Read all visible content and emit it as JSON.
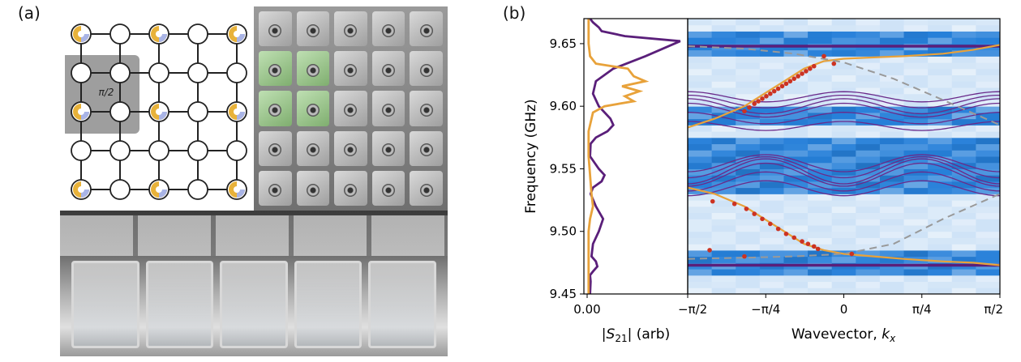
{
  "panel_a": {
    "label": "(a)",
    "unit_cell_label": "π/2",
    "lattice_note": "5x5 resonator lattice"
  },
  "panel_b": {
    "label": "(b)"
  },
  "chart_data": [
    {
      "type": "line",
      "title": "",
      "xlabel": "|S21| (arb)",
      "ylabel": "Frequency (GHz)",
      "xticks": [
        "0.00"
      ],
      "yticks": [
        "9.45",
        "9.50",
        "9.55",
        "9.60",
        "9.65"
      ],
      "ylim": [
        9.45,
        9.67
      ],
      "series": [
        {
          "name": "purple",
          "color": "#5a1f7a",
          "x": [
            0.01,
            0.012,
            0.01,
            0.02,
            0.035,
            0.03,
            0.015,
            0.02,
            0.04,
            0.055,
            0.03,
            0.012,
            0.02,
            0.05,
            0.06,
            0.04,
            0.01,
            0.012,
            0.03,
            0.07,
            0.09,
            0.08,
            0.04,
            0.02,
            0.03,
            0.09,
            0.2,
            0.32,
            0.13,
            0.05,
            0.04,
            0.02,
            0.01
          ],
          "y": [
            9.45,
            9.46,
            9.465,
            9.468,
            9.472,
            9.476,
            9.48,
            9.49,
            9.5,
            9.51,
            9.52,
            9.53,
            9.535,
            9.54,
            9.545,
            9.55,
            9.56,
            9.57,
            9.575,
            9.58,
            9.585,
            9.59,
            9.6,
            9.61,
            9.62,
            9.63,
            9.64,
            9.652,
            9.656,
            9.66,
            9.663,
            9.667,
            9.67
          ]
        },
        {
          "name": "orange",
          "color": "#e8a23a",
          "x": [
            0.005,
            0.005,
            0.005,
            0.01,
            0.02,
            0.015,
            0.005,
            0.005,
            0.02,
            0.06,
            0.16,
            0.13,
            0.18,
            0.12,
            0.2,
            0.16,
            0.14,
            0.03,
            0.01,
            0.005,
            0.005
          ],
          "y": [
            9.45,
            9.48,
            9.5,
            9.51,
            9.52,
            9.53,
            9.56,
            9.58,
            9.595,
            9.6,
            9.604,
            9.608,
            9.612,
            9.616,
            9.62,
            9.624,
            9.63,
            9.634,
            9.64,
            9.65,
            9.67
          ]
        }
      ]
    },
    {
      "type": "line",
      "title": "",
      "xlabel": "Wavevector, kx",
      "ylabel": "",
      "xticks": [
        "−π/2",
        "−π/4",
        "0",
        "π/4",
        "π/2"
      ],
      "xlim": [
        -1.5708,
        1.5708
      ],
      "ylim": [
        9.45,
        9.67
      ],
      "series": [
        {
          "name": "edge state upper (orange)",
          "color": "#e8a23a",
          "x": [
            -1.571,
            -1.3,
            -1.0,
            -0.8,
            -0.6,
            -0.4,
            -0.2,
            0,
            0.3,
            0.6,
            1.0,
            1.3,
            1.571
          ],
          "y": [
            9.583,
            9.59,
            9.6,
            9.61,
            9.62,
            9.63,
            9.636,
            9.638,
            9.639,
            9.64,
            9.642,
            9.645,
            9.649
          ]
        },
        {
          "name": "edge state lower (orange)",
          "color": "#e8a23a",
          "x": [
            -1.571,
            -1.3,
            -1.0,
            -0.8,
            -0.6,
            -0.4,
            -0.2,
            0,
            0.3,
            0.6,
            1.0,
            1.3,
            1.571
          ],
          "y": [
            9.535,
            9.53,
            9.52,
            9.51,
            9.5,
            9.49,
            9.485,
            9.482,
            9.48,
            9.478,
            9.476,
            9.475,
            9.473
          ]
        },
        {
          "name": "dashed upper",
          "color": "#999999",
          "x": [
            -1.571,
            -1.0,
            -0.5,
            0,
            0.5,
            1.0,
            1.571
          ],
          "y": [
            9.648,
            9.646,
            9.642,
            9.635,
            9.622,
            9.605,
            9.585
          ]
        },
        {
          "name": "dashed lower",
          "color": "#999999",
          "x": [
            -1.571,
            -1.0,
            -0.5,
            0,
            0.5,
            1.0,
            1.571
          ],
          "y": [
            9.478,
            9.479,
            9.48,
            9.482,
            9.49,
            9.51,
            9.53
          ]
        },
        {
          "name": "measured points upper",
          "color": "#cc3322",
          "marker": "dot",
          "x": [
            -1.0,
            -0.95,
            -0.9,
            -0.86,
            -0.82,
            -0.78,
            -0.74,
            -0.7,
            -0.66,
            -0.62,
            -0.58,
            -0.54,
            -0.5,
            -0.46,
            -0.42,
            -0.38,
            -0.34,
            -0.3,
            -0.2,
            -0.1
          ],
          "y": [
            9.596,
            9.599,
            9.602,
            9.604,
            9.606,
            9.608,
            9.61,
            9.612,
            9.614,
            9.616,
            9.618,
            9.62,
            9.622,
            9.624,
            9.626,
            9.628,
            9.63,
            9.632,
            9.64,
            9.634
          ]
        },
        {
          "name": "measured points lower",
          "color": "#cc3322",
          "marker": "dot",
          "x": [
            -1.32,
            -1.1,
            -0.98,
            -0.9,
            -0.82,
            -0.74,
            -0.66,
            -0.58,
            -0.5,
            -0.42,
            -0.36,
            -0.3,
            -0.26,
            -1.35,
            -1.0,
            0.08
          ],
          "y": [
            9.524,
            9.522,
            9.518,
            9.514,
            9.51,
            9.506,
            9.502,
            9.498,
            9.495,
            9.492,
            9.49,
            9.488,
            9.486,
            9.485,
            9.48,
            9.482
          ]
        }
      ]
    }
  ]
}
